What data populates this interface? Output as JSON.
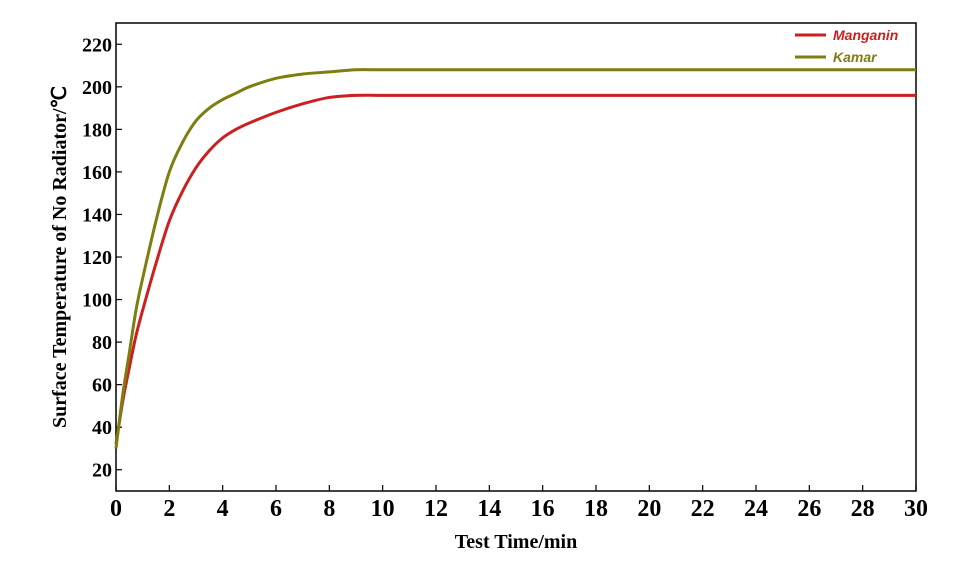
{
  "chart_data": {
    "type": "line",
    "xlabel": "Test Time/min",
    "ylabel": "Surface Temperature of No Radiator/℃",
    "xlim": [
      0,
      30
    ],
    "ylim": [
      10,
      230
    ],
    "x_ticks": [
      0,
      2,
      4,
      6,
      8,
      10,
      12,
      14,
      16,
      18,
      20,
      22,
      24,
      26,
      28,
      30
    ],
    "y_ticks": [
      20,
      40,
      60,
      80,
      100,
      120,
      140,
      160,
      180,
      200,
      220
    ],
    "grid": false,
    "legend_position": "top-right",
    "series": [
      {
        "name": "Manganin",
        "color": "#cc1f1f",
        "x": [
          0,
          0.25,
          0.5,
          0.75,
          1,
          1.5,
          2,
          2.5,
          3,
          3.5,
          4,
          4.5,
          5,
          6,
          7,
          8,
          9,
          10,
          12,
          15,
          20,
          25,
          30
        ],
        "y": [
          32,
          52,
          68,
          83,
          95,
          117,
          137,
          151,
          162,
          170,
          176,
          180,
          183,
          188,
          192,
          195,
          196,
          196,
          196,
          196,
          196,
          196,
          196
        ]
      },
      {
        "name": "Kamar",
        "color": "#7d7d10",
        "x": [
          0,
          0.25,
          0.5,
          0.75,
          1,
          1.5,
          2,
          2.5,
          3,
          3.5,
          4,
          4.5,
          5,
          6,
          7,
          8,
          9,
          10,
          12,
          15,
          20,
          25,
          30
        ],
        "y": [
          30,
          55,
          75,
          95,
          110,
          137,
          160,
          174,
          184,
          190,
          194,
          197,
          200,
          204,
          206,
          207,
          208,
          208,
          208,
          208,
          208,
          208,
          208
        ]
      }
    ]
  }
}
